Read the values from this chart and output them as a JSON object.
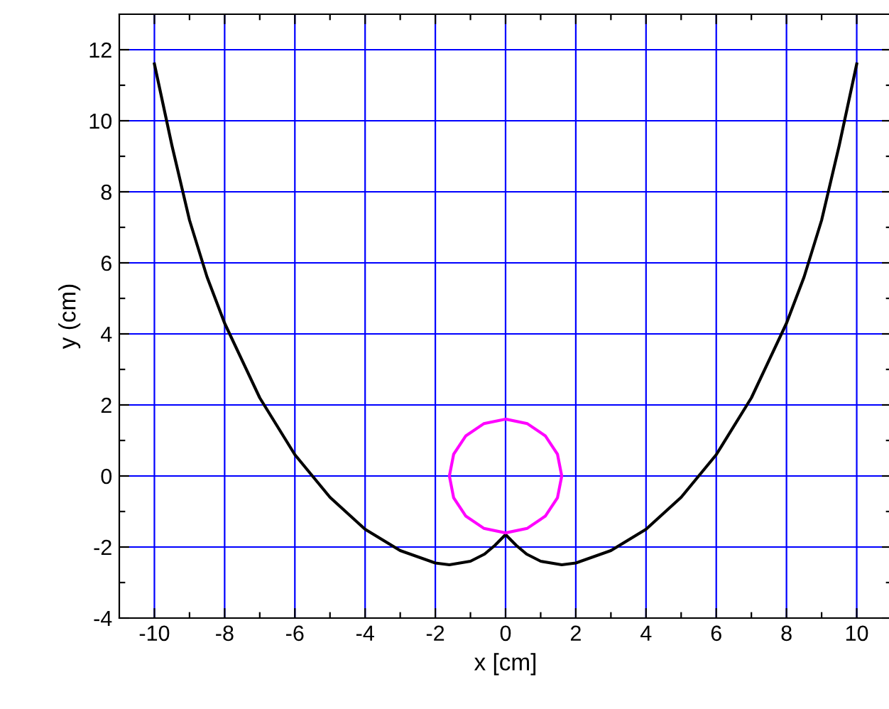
{
  "chart_data": {
    "type": "line",
    "xlabel": "x [cm]",
    "ylabel": "y (cm)",
    "xlim": [
      -11,
      11
    ],
    "ylim": [
      -4,
      13
    ],
    "xticks": [
      -10,
      {
        "value": -9,
        "label": null
      },
      -8,
      {
        "value": -7,
        "label": null
      },
      -6,
      {
        "value": -5,
        "label": null
      },
      -4,
      {
        "value": -3,
        "label": null
      },
      -2,
      {
        "value": -1,
        "label": null
      },
      0,
      {
        "value": 1,
        "label": null
      },
      2,
      {
        "value": 3,
        "label": null
      },
      4,
      {
        "value": 5,
        "label": null
      },
      6,
      {
        "value": 7,
        "label": null
      },
      8,
      {
        "value": 9,
        "label": null
      },
      10
    ],
    "yticks": [
      -4,
      {
        "value": -3,
        "label": null
      },
      -2,
      {
        "value": -1,
        "label": null
      },
      0,
      {
        "value": 1,
        "label": null
      },
      2,
      {
        "value": 3,
        "label": null
      },
      4,
      {
        "value": 5,
        "label": null
      },
      6,
      {
        "value": 7,
        "label": null
      },
      8,
      {
        "value": 9,
        "label": null
      },
      10,
      {
        "value": 11,
        "label": null
      },
      12
    ],
    "grid": true,
    "legend": false,
    "marker": "none",
    "line_style": "solid",
    "series": [
      {
        "color": "#000000",
        "x": [
          -10,
          -9.5,
          -9,
          -8.5,
          -8,
          -7,
          -6,
          -5,
          -4,
          -3,
          -2,
          -1.6,
          -1,
          -0.6,
          -0.3,
          0,
          0.3,
          0.6,
          1,
          1.6,
          2,
          3,
          4,
          5,
          6,
          7,
          8,
          8.5,
          9,
          9.5,
          10
        ],
        "values": [
          11.6,
          9.3,
          7.2,
          5.6,
          4.3,
          2.2,
          0.6,
          -0.6,
          -1.5,
          -2.1,
          -2.45,
          -2.5,
          -2.4,
          -2.2,
          -1.95,
          -1.65,
          -1.95,
          -2.2,
          -2.4,
          -2.5,
          -2.45,
          -2.1,
          -1.5,
          -0.6,
          0.6,
          2.2,
          4.3,
          5.6,
          7.2,
          9.3,
          11.6
        ]
      }
    ]
  }
}
